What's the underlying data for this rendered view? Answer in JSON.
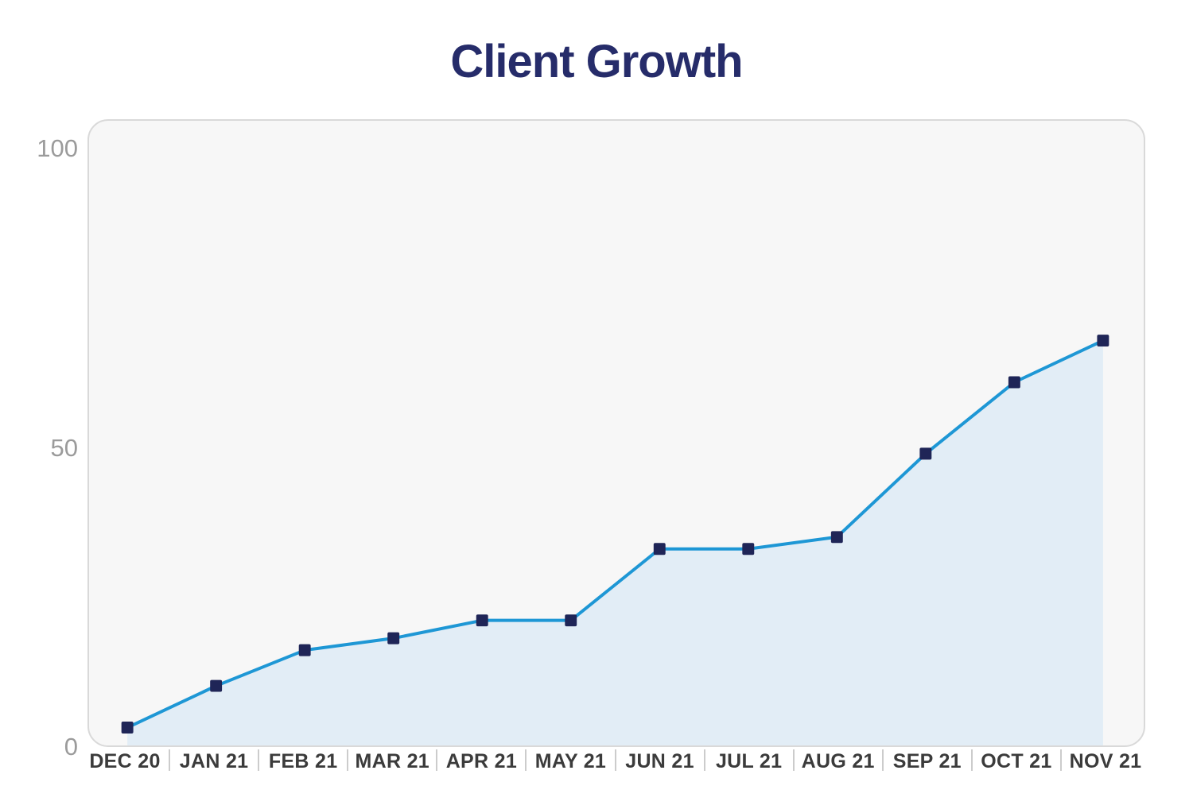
{
  "chart_data": {
    "type": "area",
    "title": "Client Growth",
    "categories": [
      "DEC 20",
      "JAN 21",
      "FEB 21",
      "MAR 21",
      "APR 21",
      "MAY 21",
      "JUN 21",
      "JUL 21",
      "AUG 21",
      "SEP 21",
      "OCT 21",
      "NOV 21"
    ],
    "values": [
      3,
      10,
      16,
      18,
      21,
      21,
      33,
      33,
      35,
      49,
      61,
      68
    ],
    "xlabel": "",
    "ylabel": "",
    "ylim": [
      0,
      100
    ],
    "yticks": [
      0,
      50,
      100
    ],
    "grid": false,
    "legend": "none",
    "marker_shape": "square",
    "colors": {
      "line": "#1e97d5",
      "marker": "#1f2557",
      "area_fill": "#e2edf6",
      "panel_bg": "#f7f7f7",
      "panel_border": "#d9d9d9",
      "title_color": "#262c6a",
      "y_label_color": "#9b9b9b",
      "x_label_color": "#3b3b3b",
      "separator_color": "#cccccc"
    }
  }
}
